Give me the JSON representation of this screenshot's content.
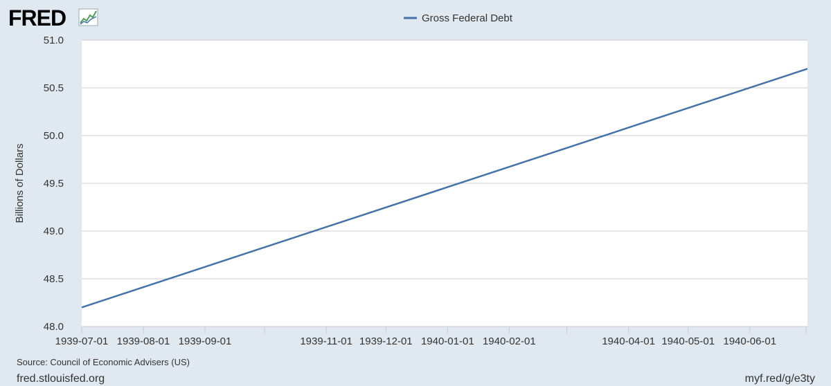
{
  "branding": {
    "logo_text": "FRED",
    "site_url": "fred.stlouisfed.org",
    "short_url": "myf.red/g/e3ty",
    "source": "Source: Council of Economic Advisers (US)"
  },
  "colors": {
    "background": "#e1e9f0",
    "plot_background": "#ffffff",
    "series_line": "#4572a7",
    "gridline": "#cccccc"
  },
  "chart_data": {
    "type": "line",
    "title": "",
    "xlabel": "",
    "ylabel": "Billions of Dollars",
    "ylim": [
      48.0,
      51.0
    ],
    "xlim": [
      "1939-07-01",
      "1940-06-30"
    ],
    "y_ticks": [
      "48.0",
      "48.5",
      "49.0",
      "49.5",
      "50.0",
      "50.5",
      "51.0"
    ],
    "x_tick_labels": [
      "1939-07-01",
      "1939-08-01",
      "1939-09-01",
      "1939-11-01",
      "1939-12-01",
      "1940-01-01",
      "1940-02-01",
      "1940-04-01",
      "1940-05-01",
      "1940-06-01"
    ],
    "x_minor_ticks": [
      "1939-10-01",
      "1940-03-01"
    ],
    "grid": true,
    "legend_position": "top-center",
    "series": [
      {
        "name": "Gross Federal Debt",
        "x": [
          "1939-07-01",
          "1940-06-30"
        ],
        "values": [
          48.2,
          50.7
        ]
      }
    ]
  }
}
